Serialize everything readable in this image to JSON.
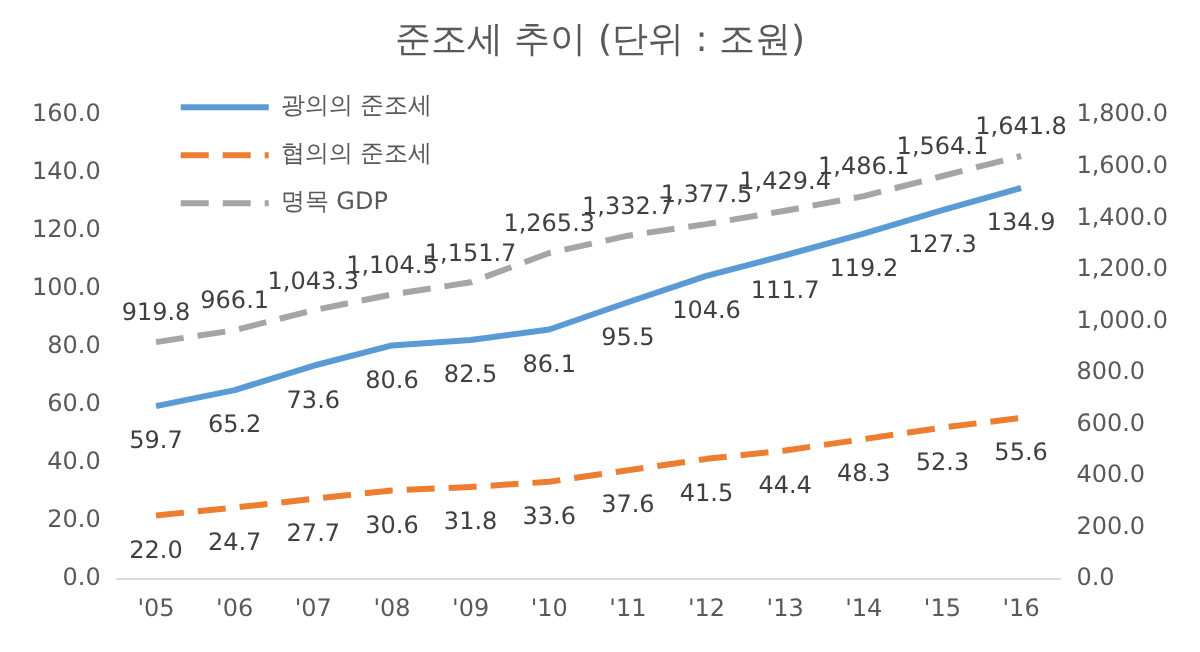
{
  "chart_data": {
    "type": "line",
    "title": "준조세 추이 (단위 : 조원)",
    "categories": [
      "'05",
      "'06",
      "'07",
      "'08",
      "'09",
      "'10",
      "'11",
      "'12",
      "'13",
      "'14",
      "'15",
      "'16"
    ],
    "series": [
      {
        "name": "광의의 준조세",
        "color": "#5b9bd5",
        "line_style": "solid",
        "values": [
          59.7,
          65.2,
          73.6,
          80.6,
          82.5,
          86.1,
          95.5,
          104.6,
          111.7,
          119.2,
          127.3,
          134.9
        ],
        "value_labels": [
          "59.7",
          "65.2",
          "73.6",
          "80.6",
          "82.5",
          "86.1",
          "95.5",
          "104.6",
          "111.7",
          "119.2",
          "127.3",
          "134.9"
        ]
      },
      {
        "name": "협의의 준조세",
        "color": "#ed7d31",
        "line_style": "dashed",
        "values": [
          22.0,
          24.7,
          27.7,
          30.6,
          31.8,
          33.6,
          37.6,
          41.5,
          44.4,
          48.3,
          52.3,
          55.6
        ],
        "value_labels": [
          "22.0",
          "24.7",
          "27.7",
          "30.6",
          "31.8",
          "33.6",
          "37.6",
          "41.5",
          "44.4",
          "48.3",
          "52.3",
          "55.6"
        ]
      },
      {
        "name": "명목 GDP",
        "color": "#a5a5a5",
        "line_style": "dashed",
        "axis": "y2",
        "values": [
          919.8,
          966.1,
          1043.3,
          1104.5,
          1151.7,
          1265.3,
          1332.7,
          1377.5,
          1429.4,
          1486.1,
          1564.1,
          1641.8
        ],
        "value_labels": [
          "919.8",
          "966.1",
          "1,043.3",
          "1,104.5",
          "1,151.7",
          "1,265.3",
          "1,332.7",
          "1,377.5",
          "1,429.4",
          "1,486.1",
          "1,564.1",
          "1,641.8"
        ]
      }
    ],
    "ylim": [
      0,
      160
    ],
    "yticks": [
      {
        "value": 0,
        "label": "0.0"
      },
      {
        "value": 20,
        "label": "20.0"
      },
      {
        "value": 40,
        "label": "40.0"
      },
      {
        "value": 60,
        "label": "60.0"
      },
      {
        "value": 80,
        "label": "80.0"
      },
      {
        "value": 100,
        "label": "100.0"
      },
      {
        "value": 120,
        "label": "120.0"
      },
      {
        "value": 140,
        "label": "140.0"
      },
      {
        "value": 160,
        "label": "160.0"
      }
    ],
    "y2lim": [
      0,
      1800
    ],
    "y2ticks": [
      {
        "value": 0,
        "label": "0.0"
      },
      {
        "value": 200,
        "label": "200.0"
      },
      {
        "value": 400,
        "label": "400.0"
      },
      {
        "value": 600,
        "label": "600.0"
      },
      {
        "value": 800,
        "label": "800.0"
      },
      {
        "value": 1000,
        "label": "1,000.0"
      },
      {
        "value": 1200,
        "label": "1,200.0"
      },
      {
        "value": 1400,
        "label": "1,400.0"
      },
      {
        "value": 1600,
        "label": "1,600.0"
      },
      {
        "value": 1800,
        "label": "1,800.0"
      }
    ],
    "grid": false,
    "legend": "top left",
    "marker": "none"
  }
}
